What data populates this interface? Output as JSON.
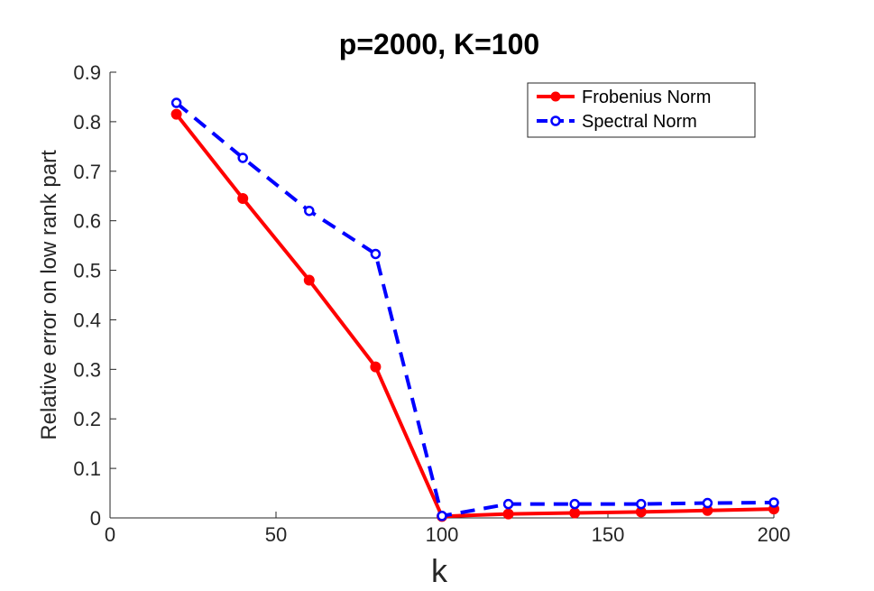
{
  "chart_data": {
    "type": "line",
    "title": "p=2000,  K=100",
    "xlabel": "k",
    "ylabel": "Relative error on low rank part",
    "xlim": [
      0,
      200
    ],
    "ylim": [
      0,
      0.9
    ],
    "xticks": [
      0,
      50,
      100,
      150,
      200
    ],
    "yticks": [
      0,
      0.1,
      0.2,
      0.3,
      0.4,
      0.5,
      0.6,
      0.7,
      0.8,
      0.9
    ],
    "x": [
      20,
      40,
      60,
      80,
      100,
      120,
      140,
      160,
      180,
      200
    ],
    "series": [
      {
        "name": "Frobenius Norm",
        "color": "#ff0000",
        "line_style": "solid",
        "marker": "filled-circle",
        "values": [
          0.815,
          0.645,
          0.48,
          0.305,
          0.003,
          0.008,
          0.01,
          0.012,
          0.015,
          0.018
        ]
      },
      {
        "name": "Spectral Norm",
        "color": "#0000ff",
        "line_style": "dashed",
        "marker": "open-circle",
        "values": [
          0.838,
          0.727,
          0.62,
          0.533,
          0.004,
          0.028,
          0.028,
          0.028,
          0.03,
          0.031
        ]
      }
    ],
    "legend_position": "top-right",
    "grid": false
  }
}
